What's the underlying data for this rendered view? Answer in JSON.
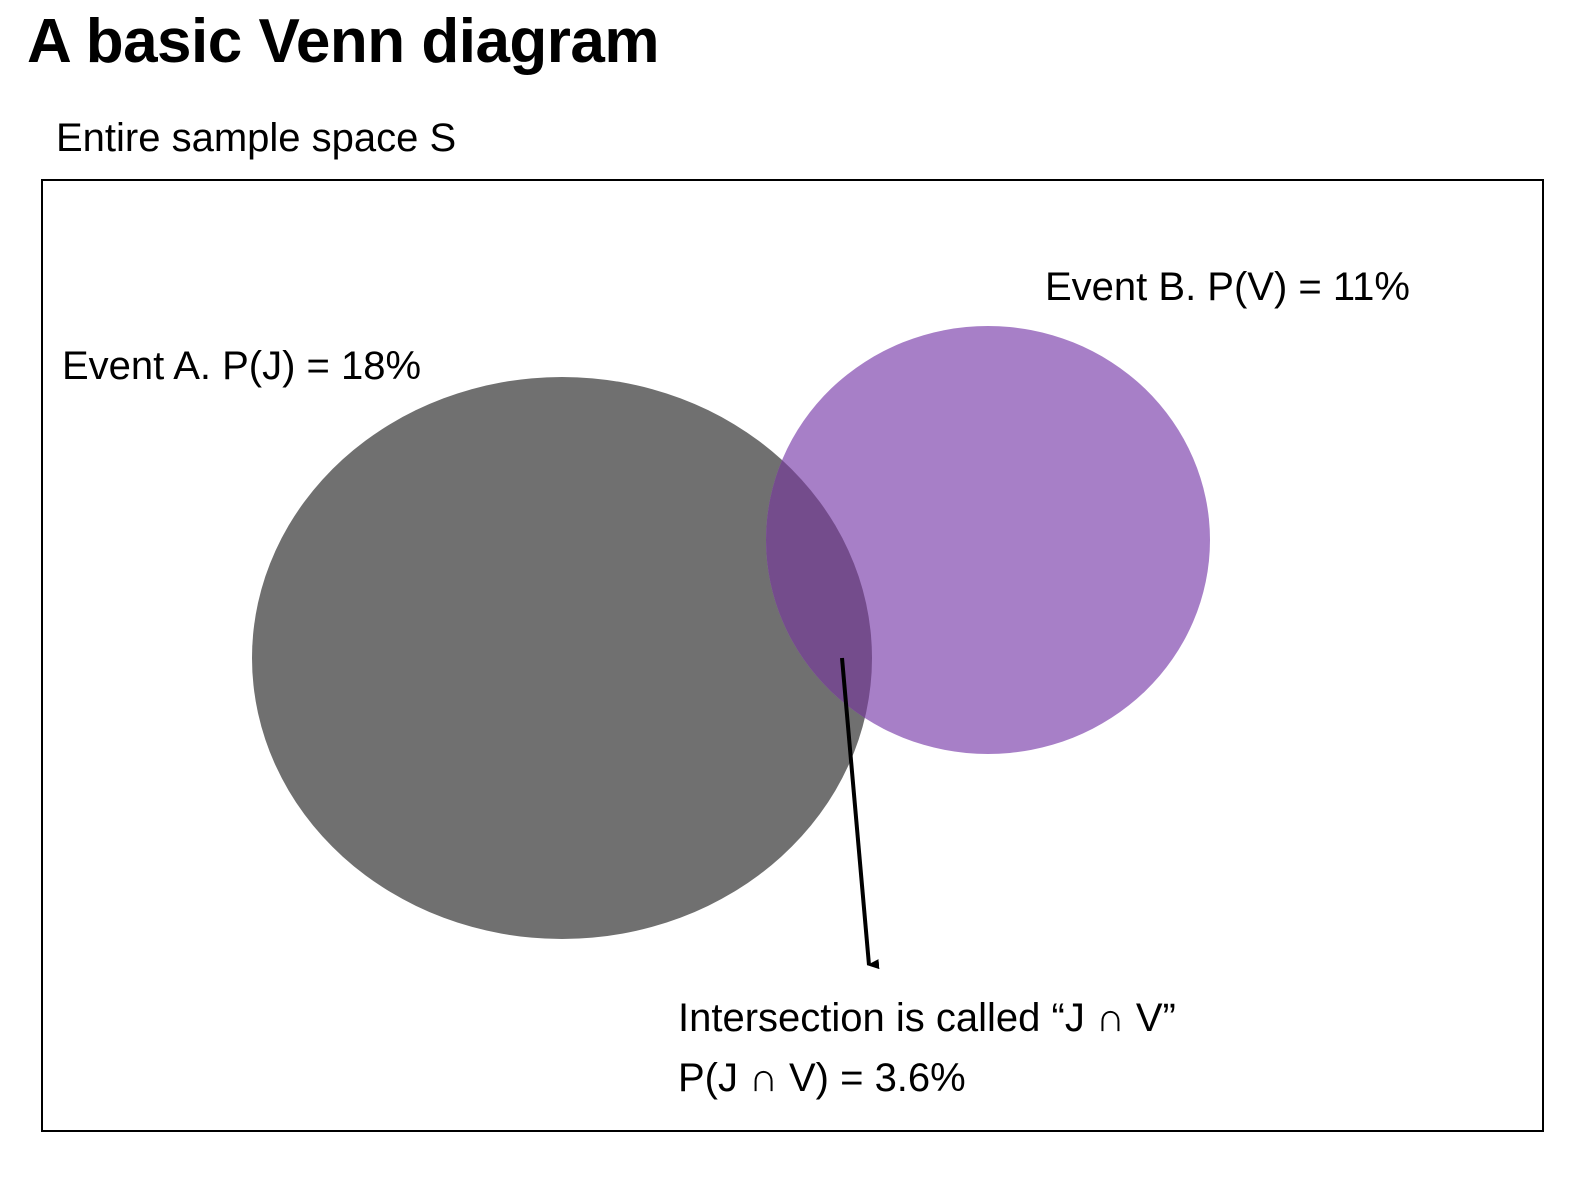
{
  "title": "A basic Venn diagram",
  "sample_space": {
    "label": "Entire sample space S"
  },
  "events": [
    {
      "name": "Event A",
      "label": "Event A. P(J) = 18%",
      "probability": 18,
      "color": "#707070"
    },
    {
      "name": "Event B",
      "label": "Event B. P(V) = 11%",
      "probability": 11,
      "color": "#A77FC7"
    }
  ],
  "intersection": {
    "label_line1": "Intersection is called “J ∩ V”",
    "label_line2": "P(J ∩ V) = 3.6%",
    "probability": 3.6,
    "color": "#744C8C"
  },
  "colors": {
    "background": "#FFFFFF",
    "outline": "#000000"
  }
}
